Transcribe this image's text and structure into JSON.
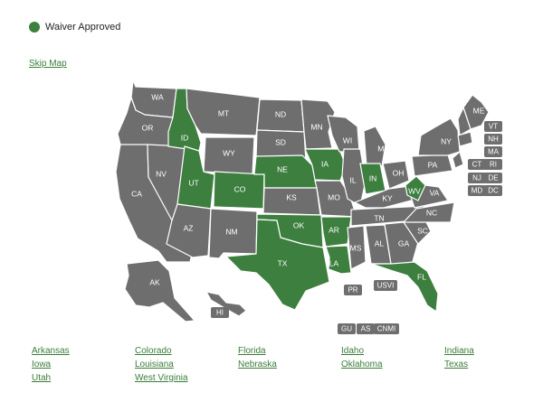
{
  "legend": {
    "label": "Waiver Approved",
    "color": "#3d7f3f"
  },
  "skip_map": "Skip Map",
  "colors": {
    "approved": "#3d7f3f",
    "other": "#6e6e6e"
  },
  "states": [
    {
      "id": "WA",
      "label": "WA",
      "approved": false
    },
    {
      "id": "OR",
      "label": "OR",
      "approved": false
    },
    {
      "id": "CA",
      "label": "CA",
      "approved": false
    },
    {
      "id": "NV",
      "label": "NV",
      "approved": false
    },
    {
      "id": "ID",
      "label": "ID",
      "approved": true
    },
    {
      "id": "MT",
      "label": "MT",
      "approved": false
    },
    {
      "id": "WY",
      "label": "WY",
      "approved": false
    },
    {
      "id": "UT",
      "label": "UT",
      "approved": true
    },
    {
      "id": "AZ",
      "label": "AZ",
      "approved": false
    },
    {
      "id": "CO",
      "label": "CO",
      "approved": true
    },
    {
      "id": "NM",
      "label": "NM",
      "approved": false
    },
    {
      "id": "ND",
      "label": "ND",
      "approved": false
    },
    {
      "id": "SD",
      "label": "SD",
      "approved": false
    },
    {
      "id": "NE",
      "label": "NE",
      "approved": true
    },
    {
      "id": "KS",
      "label": "KS",
      "approved": false
    },
    {
      "id": "OK",
      "label": "OK",
      "approved": true
    },
    {
      "id": "TX",
      "label": "TX",
      "approved": true
    },
    {
      "id": "MN",
      "label": "MN",
      "approved": false
    },
    {
      "id": "IA",
      "label": "IA",
      "approved": true
    },
    {
      "id": "MO",
      "label": "MO",
      "approved": false
    },
    {
      "id": "AR",
      "label": "AR",
      "approved": true
    },
    {
      "id": "LA",
      "label": "LA",
      "approved": true
    },
    {
      "id": "WI",
      "label": "WI",
      "approved": false
    },
    {
      "id": "IL",
      "label": "IL",
      "approved": false
    },
    {
      "id": "MI",
      "label": "MI",
      "approved": false
    },
    {
      "id": "IN",
      "label": "IN",
      "approved": true
    },
    {
      "id": "OH",
      "label": "OH",
      "approved": false
    },
    {
      "id": "KY",
      "label": "KY",
      "approved": false
    },
    {
      "id": "TN",
      "label": "TN",
      "approved": false
    },
    {
      "id": "MS",
      "label": "MS",
      "approved": false
    },
    {
      "id": "AL",
      "label": "AL",
      "approved": false
    },
    {
      "id": "GA",
      "label": "GA",
      "approved": false
    },
    {
      "id": "FL",
      "label": "FL",
      "approved": true
    },
    {
      "id": "SC",
      "label": "SC",
      "approved": false
    },
    {
      "id": "NC",
      "label": "NC",
      "approved": false
    },
    {
      "id": "VA",
      "label": "VA",
      "approved": false
    },
    {
      "id": "WV",
      "label": "WV",
      "approved": true
    },
    {
      "id": "PA",
      "label": "PA",
      "approved": false
    },
    {
      "id": "NY",
      "label": "NY",
      "approved": false
    },
    {
      "id": "ME",
      "label": "ME",
      "approved": false
    },
    {
      "id": "AK",
      "label": "AK",
      "approved": false
    },
    {
      "id": "HI",
      "label": "HI",
      "approved": false
    }
  ],
  "territories": [
    {
      "id": "VT",
      "label": "VT",
      "approved": false
    },
    {
      "id": "NH",
      "label": "NH",
      "approved": false
    },
    {
      "id": "MA",
      "label": "MA",
      "approved": false
    },
    {
      "id": "CT",
      "label": "CT",
      "approved": false
    },
    {
      "id": "RI",
      "label": "RI",
      "approved": false
    },
    {
      "id": "NJ",
      "label": "NJ",
      "approved": false
    },
    {
      "id": "DE",
      "label": "DE",
      "approved": false
    },
    {
      "id": "MD",
      "label": "MD",
      "approved": false
    },
    {
      "id": "DC",
      "label": "DC",
      "approved": false
    },
    {
      "id": "PR",
      "label": "PR",
      "approved": false
    },
    {
      "id": "USVI",
      "label": "USVI",
      "approved": false
    },
    {
      "id": "GU",
      "label": "GU",
      "approved": false
    },
    {
      "id": "AS",
      "label": "AS",
      "approved": false
    },
    {
      "id": "CNMI",
      "label": "CNMI",
      "approved": false
    }
  ],
  "approved_links": [
    "Arkansas",
    "Colorado",
    "Florida",
    "Idaho",
    "Indiana",
    "Iowa",
    "Louisiana",
    "Nebraska",
    "Oklahoma",
    "Texas",
    "Utah",
    "West Virginia"
  ]
}
